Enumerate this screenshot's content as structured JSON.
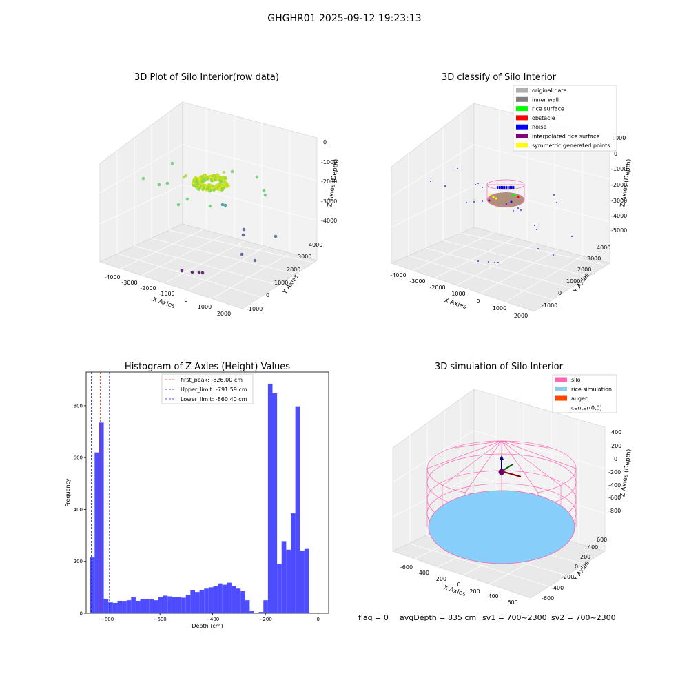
{
  "figure_title": "GHGHR01 2025-09-12 19:23:13",
  "footer": {
    "flag": "flag = 0",
    "avg_depth": "avgDepth = 835 cm",
    "sv1": "sv1 = 700~2300",
    "sv2": "sv2 = 700~2300"
  },
  "colors": {
    "hist_bar": "#4d4dff",
    "peak_line": "#e31a1c",
    "limit_line": "#1f1fbf",
    "silo": "#ff69b4",
    "rice": "#87cefa",
    "auger": "#ff4500"
  },
  "chart_data": [
    {
      "type": "scatter",
      "subtype": "3d",
      "title": "3D Plot of Silo Interior(row data)",
      "xlabel": "X Axies",
      "ylabel": "Y Axies",
      "zlabel": "Z Axies (Depth)",
      "x_ticks": [
        "-4000",
        "-3000",
        "-2000",
        "-1000",
        "0",
        "1000",
        "2000"
      ],
      "y_ticks": [
        "-1000",
        "0",
        "1000",
        "2000",
        "3000",
        "4000"
      ],
      "z_ticks": [
        "0",
        "-1000",
        "-2000",
        "-3000",
        "-4000"
      ],
      "xlim": [
        -4500,
        2500
      ],
      "ylim": [
        -1500,
        4500
      ],
      "zlim": [
        -4500,
        200
      ],
      "colormap": "viridis",
      "grid": true
    },
    {
      "type": "scatter",
      "subtype": "3d",
      "title": "3D classify of Silo Interior",
      "xlabel": "X Axies",
      "ylabel": "Y Axies",
      "zlabel": "Z Axies (Depth)",
      "x_ticks": [
        "-4000",
        "-3000",
        "-2000",
        "-1000",
        "0",
        "1000",
        "2000"
      ],
      "y_ticks": [
        "-1000",
        "0",
        "1000",
        "2000",
        "3000",
        "4000"
      ],
      "z_ticks": [
        "1000",
        "0",
        "-1000",
        "-2000",
        "-3000",
        "-4000",
        "-5000"
      ],
      "legend": [
        {
          "label": "original data",
          "color": "#b0b0b0"
        },
        {
          "label": "inner wall",
          "color": "#808080"
        },
        {
          "label": "rice surface",
          "color": "#00ff00"
        },
        {
          "label": "obstacle",
          "color": "#ff0000"
        },
        {
          "label": "noise",
          "color": "#0000ff"
        },
        {
          "label": "interpolated rice surface",
          "color": "#800080"
        },
        {
          "label": "symmetric generated points",
          "color": "#ffff00"
        }
      ],
      "legend_loc": "upper right",
      "grid": true
    },
    {
      "type": "bar",
      "subtype": "histogram",
      "title": "Histogram of Z-Axies (Height) Values",
      "xlabel": "Depth (cm)",
      "ylabel": "Frequency",
      "xlim": [
        -880,
        40
      ],
      "ylim": [
        0,
        930
      ],
      "x_ticks": [
        -800,
        -600,
        -400,
        -200,
        0
      ],
      "y_ticks": [
        0,
        200,
        400,
        600,
        800
      ],
      "bin_start": -865,
      "bin_width": 17.3,
      "values": [
        215,
        620,
        735,
        55,
        42,
        40,
        48,
        45,
        50,
        62,
        48,
        55,
        55,
        55,
        50,
        62,
        68,
        65,
        62,
        62,
        60,
        70,
        88,
        82,
        90,
        95,
        100,
        105,
        115,
        110,
        118,
        105,
        95,
        85,
        50,
        8,
        0,
        5,
        50,
        885,
        848,
        190,
        278,
        245,
        385,
        798,
        242,
        248
      ],
      "vlines": [
        {
          "label": "first_peak: -826.00 cm",
          "x": -826.0,
          "kind": "peak"
        },
        {
          "label": "Upper_limit: -791.59 cm",
          "x": -791.59,
          "kind": "limit"
        },
        {
          "label": "Lower_limit: -860.40 cm",
          "x": -860.4,
          "kind": "limit"
        }
      ],
      "legend_loc": "upper center",
      "grid": false
    },
    {
      "type": "scatter",
      "subtype": "3d",
      "title": "3D simulation of Silo Interior",
      "xlabel": "X Axies",
      "ylabel": "Y Axies",
      "zlabel": "Z Axies (Depth)",
      "x_ticks": [
        "-600",
        "-400",
        "-200",
        "0",
        "200",
        "400",
        "600"
      ],
      "y_ticks": [
        "-600",
        "-400",
        "-200",
        "0",
        "200",
        "400",
        "600"
      ],
      "z_ticks": [
        "400",
        "200",
        "0",
        "-200",
        "-400",
        "-600",
        "-800"
      ],
      "legend": [
        {
          "label": "silo",
          "color": "#ff69b4"
        },
        {
          "label": "rice simulation",
          "color": "#87ceeb"
        },
        {
          "label": "auger",
          "color": "#ff4500"
        },
        {
          "label": "center(0,0)",
          "color": ""
        }
      ],
      "legend_loc": "upper right",
      "grid": true
    }
  ]
}
